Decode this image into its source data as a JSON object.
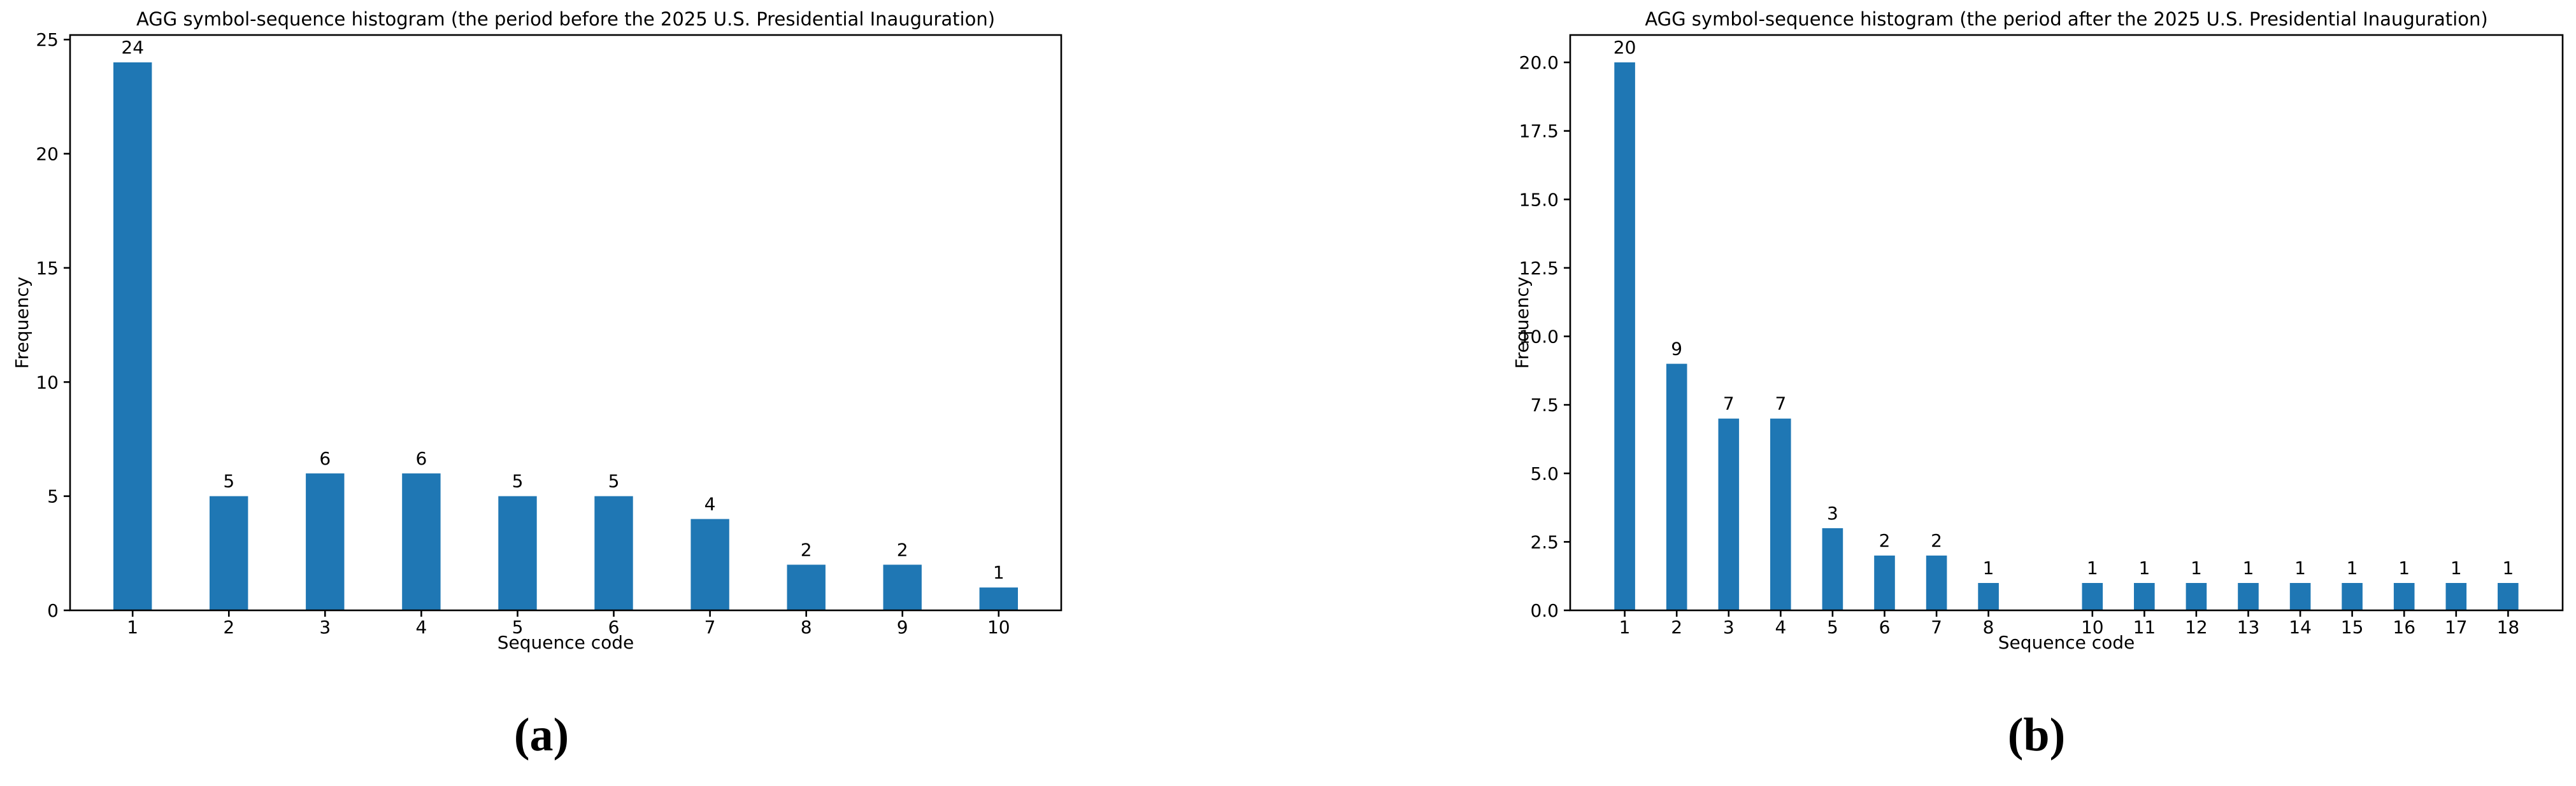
{
  "figure": {
    "background": "#ffffff",
    "text_color": "#000000",
    "panels": [
      {
        "caption": "(a)"
      },
      {
        "caption": "(b)"
      }
    ]
  },
  "chart_data": [
    {
      "type": "bar",
      "title": "AGG symbol-sequence histogram (the period before the 2025 U.S. Presidential Inauguration)",
      "xlabel": "Sequence code",
      "ylabel": "Frequency",
      "x": [
        1,
        2,
        3,
        4,
        5,
        6,
        7,
        8,
        9,
        10
      ],
      "values": [
        24,
        5,
        6,
        6,
        5,
        5,
        4,
        2,
        2,
        1
      ],
      "bar_labels": [
        "24",
        "5",
        "6",
        "6",
        "5",
        "5",
        "4",
        "2",
        "2",
        "1"
      ],
      "xtick_values": [
        1,
        2,
        3,
        4,
        5,
        6,
        7,
        8,
        9,
        10
      ],
      "xtick_labels": [
        "1",
        "2",
        "3",
        "4",
        "5",
        "6",
        "7",
        "8",
        "9",
        "10"
      ],
      "yticks": [
        0,
        5,
        10,
        15,
        20,
        25
      ],
      "ytick_labels": [
        "0",
        "5",
        "10",
        "15",
        "20",
        "25"
      ],
      "xlim": [
        0.35,
        10.65
      ],
      "ylim": [
        0,
        25.2
      ],
      "bar_width": 0.4,
      "bar_color": "#1f77b4",
      "grid": false,
      "legend": null,
      "caption": "(a)"
    },
    {
      "type": "bar",
      "title": "AGG symbol-sequence histogram (the period after the 2025 U.S. Presidential Inauguration)",
      "xlabel": "Sequence code",
      "ylabel": "Frequency",
      "x": [
        1,
        2,
        3,
        4,
        5,
        6,
        7,
        8,
        10,
        11,
        12,
        13,
        14,
        15,
        16,
        17,
        18
      ],
      "values": [
        20,
        9,
        7,
        7,
        3,
        2,
        2,
        1,
        1,
        1,
        1,
        1,
        1,
        1,
        1,
        1,
        1
      ],
      "bar_labels": [
        "20",
        "9",
        "7",
        "7",
        "3",
        "2",
        "2",
        "1",
        "1",
        "1",
        "1",
        "1",
        "1",
        "1",
        "1",
        "1",
        "1"
      ],
      "xtick_values": [
        1,
        2,
        3,
        4,
        5,
        6,
        7,
        8,
        10,
        11,
        12,
        13,
        14,
        15,
        16,
        17,
        18
      ],
      "xtick_labels": [
        "1",
        "2",
        "3",
        "4",
        "5",
        "6",
        "7",
        "8",
        "10",
        "11",
        "12",
        "13",
        "14",
        "15",
        "16",
        "17",
        "18"
      ],
      "yticks": [
        0,
        2.5,
        5,
        7.5,
        10,
        12.5,
        15,
        17.5,
        20
      ],
      "ytick_labels": [
        "0.0",
        "2.5",
        "5.0",
        "7.5",
        "10.0",
        "12.5",
        "15.0",
        "17.5",
        "20.0"
      ],
      "xlim": [
        -0.05,
        19.05
      ],
      "ylim": [
        0,
        21
      ],
      "bar_width": 0.4,
      "bar_color": "#1f77b4",
      "grid": false,
      "legend": null,
      "caption": "(b)"
    }
  ]
}
